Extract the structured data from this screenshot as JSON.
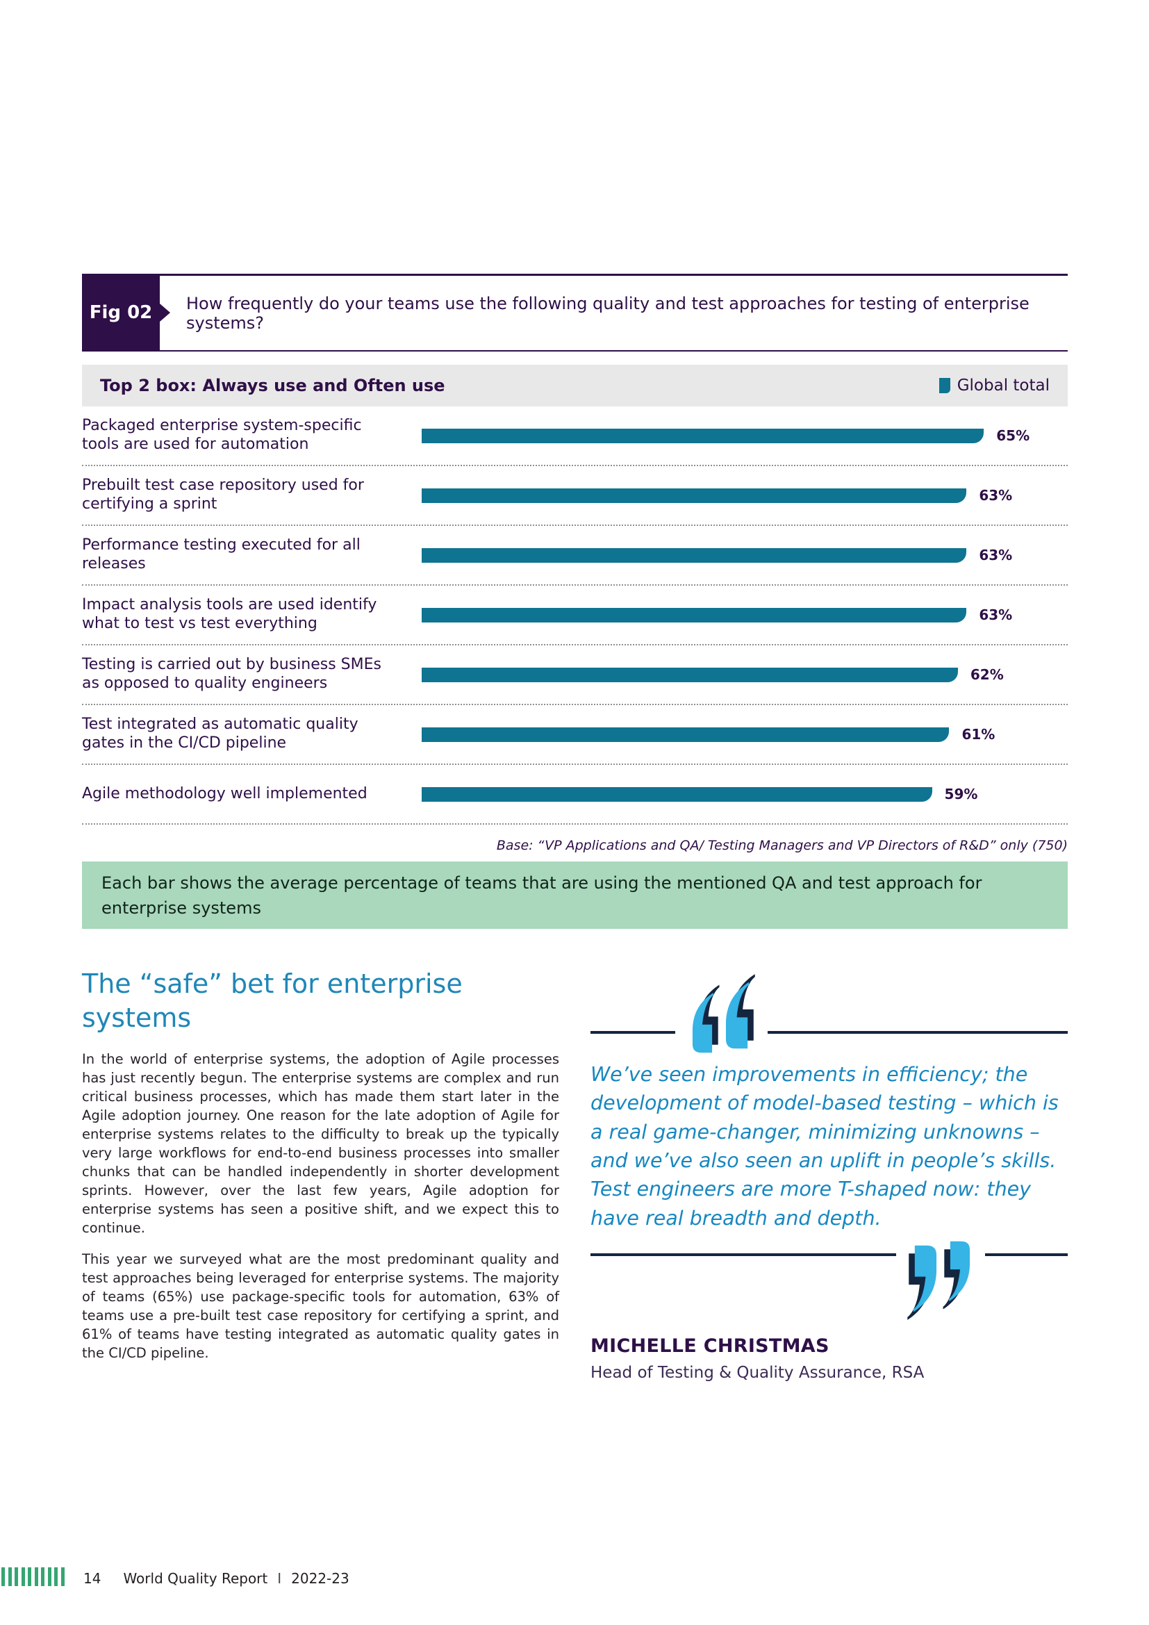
{
  "figure": {
    "tag": "Fig 02",
    "question": "How frequently do your teams use the following quality and test approaches for testing of enterprise systems?",
    "chart_header": "Top 2 box: Always use and Often use",
    "legend_label": "Global total",
    "base_note": "Base: “VP Applications and QA/ Testing Managers and VP Directors of R&D” only (750)",
    "callout": "Each bar shows the average percentage of teams that are using the mentioned QA and test approach for enterprise systems"
  },
  "chart_data": {
    "type": "bar",
    "orientation": "horizontal",
    "series_name": "Global total",
    "categories": [
      "Packaged enterprise system-specific tools are used for automation",
      "Prebuilt test case repository used for certifying a sprint",
      "Performance testing executed for all releases",
      "Impact analysis tools are used identify what to test vs test everything",
      "Testing is carried out by business SMEs as opposed to quality engineers",
      "Test integrated as automatic quality gates in the CI/CD pipeline",
      "Agile methodology well implemented"
    ],
    "values": [
      65,
      63,
      63,
      63,
      62,
      61,
      59
    ],
    "value_labels": [
      "65%",
      "63%",
      "63%",
      "63%",
      "62%",
      "61%",
      "59%"
    ],
    "unit": "%",
    "xlim": [
      0,
      80
    ],
    "grid": false,
    "legend_position": "top-right",
    "bar_color": "#0e7491"
  },
  "article": {
    "heading": "The “safe” bet for enterprise systems",
    "paragraphs": [
      "In the world of enterprise systems, the adoption of Agile processes has just recently begun. The enterprise systems are complex and run critical business processes, which has made them start later in the Agile adoption journey. One reason for the late adoption of Agile for enterprise systems relates to the difficulty to break up the typically very large workflows for end-to-end business processes into smaller chunks that can be handled independently in shorter development sprints. However, over the last few years, Agile adoption for enterprise systems has seen a positive shift, and we expect this to continue.",
      "This year we surveyed what are the most predominant quality and test approaches being leveraged for enterprise systems. The majority of teams (65%) use package-specific tools for automation, 63% of teams use a pre-built test case repository for certifying a sprint, and 61% of teams have testing integrated as automatic quality gates in the CI/CD pipeline."
    ],
    "quote": {
      "text": "We’ve seen improvements in efficiency; the development of model-based testing – which is a real game-changer, minimizing unknowns – and we’ve also seen an uplift in people’s skills. Test engineers are more T-shaped now: they have real breadth and depth.",
      "author": "MICHELLE CHRISTMAS",
      "role": "Head of Testing & Quality Assurance, RSA"
    }
  },
  "footer": {
    "page_number": "14",
    "report_title": "World Quality Report",
    "separator": "I",
    "edition": "2022-23"
  },
  "colors": {
    "purple": "#2e0f47",
    "teal": "#0e7491",
    "heading_blue": "#1f87b7",
    "quote_blue": "#1787c0",
    "quote_cyan": "#35b4e5",
    "quote_navy": "#14253f",
    "callout_green": "#a9d8bc",
    "footer_green": "#35a572",
    "header_gray": "#e9e8e8"
  }
}
